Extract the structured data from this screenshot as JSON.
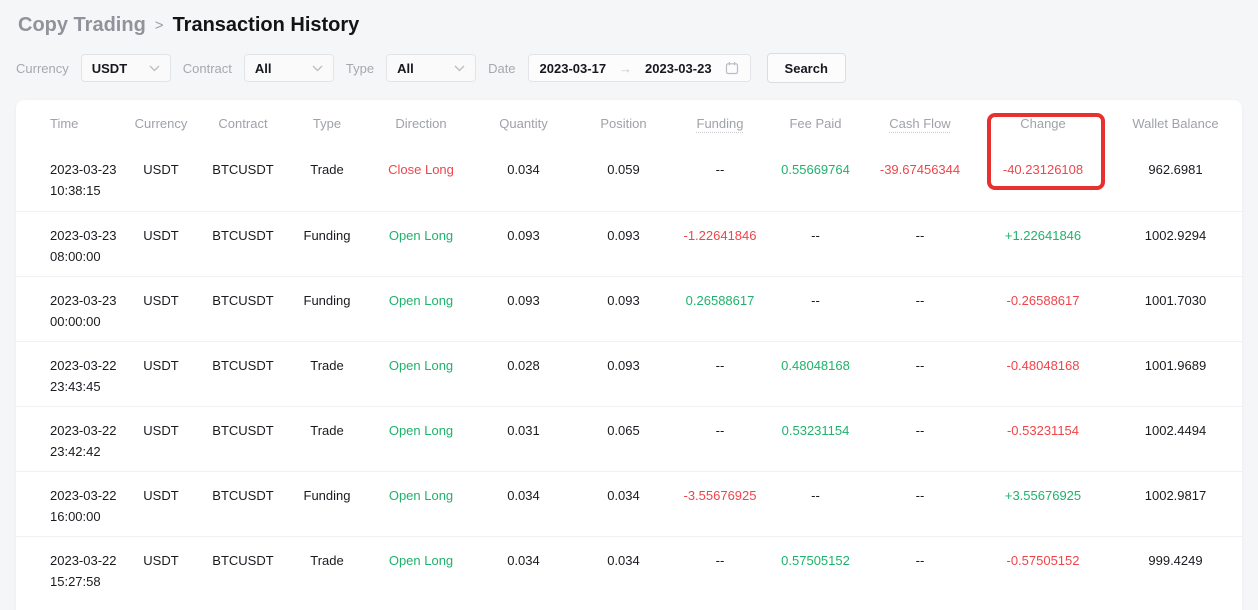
{
  "breadcrumb": {
    "parent": "Copy Trading",
    "separator": ">",
    "current": "Transaction History"
  },
  "filters": {
    "currency_label": "Currency",
    "currency_value": "USDT",
    "contract_label": "Contract",
    "contract_value": "All",
    "type_label": "Type",
    "type_value": "All",
    "date_label": "Date",
    "date_start": "2023-03-17",
    "date_arrow": "→",
    "date_end": "2023-03-23",
    "search_label": "Search"
  },
  "colors": {
    "green": "#20b26c",
    "red": "#ef454a",
    "annotation_box": "#e8312f"
  },
  "annotation": {
    "description": "red box drawn around Change column header and first-row value"
  },
  "table": {
    "columns": [
      {
        "label": "Time"
      },
      {
        "label": "Currency"
      },
      {
        "label": "Contract"
      },
      {
        "label": "Type"
      },
      {
        "label": "Direction"
      },
      {
        "label": "Quantity"
      },
      {
        "label": "Position"
      },
      {
        "label": "Funding",
        "tip": true
      },
      {
        "label": "Fee Paid"
      },
      {
        "label": "Cash Flow",
        "tip": true
      },
      {
        "label": "Change"
      },
      {
        "label": "Wallet Balance"
      }
    ],
    "rows": [
      {
        "cells": [
          {
            "lines": [
              "2023-03-23",
              "10:38:15"
            ]
          },
          {
            "v": "USDT"
          },
          {
            "v": "BTCUSDT"
          },
          {
            "v": "Trade"
          },
          {
            "v": "Close Long",
            "c": "red"
          },
          {
            "v": "0.034"
          },
          {
            "v": "0.059"
          },
          {
            "v": "--"
          },
          {
            "v": "0.55669764",
            "c": "green"
          },
          {
            "v": "-39.67456344",
            "c": "red"
          },
          {
            "v": "-40.23126108",
            "c": "red"
          },
          {
            "v": "962.6981"
          }
        ]
      },
      {
        "cells": [
          {
            "lines": [
              "2023-03-23",
              "08:00:00"
            ]
          },
          {
            "v": "USDT"
          },
          {
            "v": "BTCUSDT"
          },
          {
            "v": "Funding"
          },
          {
            "v": "Open Long",
            "c": "green"
          },
          {
            "v": "0.093"
          },
          {
            "v": "0.093"
          },
          {
            "v": "-1.22641846",
            "c": "red"
          },
          {
            "v": "--"
          },
          {
            "v": "--"
          },
          {
            "v": "+1.22641846",
            "c": "green"
          },
          {
            "v": "1002.9294"
          }
        ]
      },
      {
        "cells": [
          {
            "lines": [
              "2023-03-23",
              "00:00:00"
            ]
          },
          {
            "v": "USDT"
          },
          {
            "v": "BTCUSDT"
          },
          {
            "v": "Funding"
          },
          {
            "v": "Open Long",
            "c": "green"
          },
          {
            "v": "0.093"
          },
          {
            "v": "0.093"
          },
          {
            "v": "0.26588617",
            "c": "green"
          },
          {
            "v": "--"
          },
          {
            "v": "--"
          },
          {
            "v": "-0.26588617",
            "c": "red"
          },
          {
            "v": "1001.7030"
          }
        ]
      },
      {
        "cells": [
          {
            "lines": [
              "2023-03-22",
              "23:43:45"
            ]
          },
          {
            "v": "USDT"
          },
          {
            "v": "BTCUSDT"
          },
          {
            "v": "Trade"
          },
          {
            "v": "Open Long",
            "c": "green"
          },
          {
            "v": "0.028"
          },
          {
            "v": "0.093"
          },
          {
            "v": "--"
          },
          {
            "v": "0.48048168",
            "c": "green"
          },
          {
            "v": "--"
          },
          {
            "v": "-0.48048168",
            "c": "red"
          },
          {
            "v": "1001.9689"
          }
        ]
      },
      {
        "cells": [
          {
            "lines": [
              "2023-03-22",
              "23:42:42"
            ]
          },
          {
            "v": "USDT"
          },
          {
            "v": "BTCUSDT"
          },
          {
            "v": "Trade"
          },
          {
            "v": "Open Long",
            "c": "green"
          },
          {
            "v": "0.031"
          },
          {
            "v": "0.065"
          },
          {
            "v": "--"
          },
          {
            "v": "0.53231154",
            "c": "green"
          },
          {
            "v": "--"
          },
          {
            "v": "-0.53231154",
            "c": "red"
          },
          {
            "v": "1002.4494"
          }
        ]
      },
      {
        "cells": [
          {
            "lines": [
              "2023-03-22",
              "16:00:00"
            ]
          },
          {
            "v": "USDT"
          },
          {
            "v": "BTCUSDT"
          },
          {
            "v": "Funding"
          },
          {
            "v": "Open Long",
            "c": "green"
          },
          {
            "v": "0.034"
          },
          {
            "v": "0.034"
          },
          {
            "v": "-3.55676925",
            "c": "red"
          },
          {
            "v": "--"
          },
          {
            "v": "--"
          },
          {
            "v": "+3.55676925",
            "c": "green"
          },
          {
            "v": "1002.9817"
          }
        ]
      },
      {
        "cells": [
          {
            "lines": [
              "2023-03-22",
              "15:27:58"
            ]
          },
          {
            "v": "USDT"
          },
          {
            "v": "BTCUSDT"
          },
          {
            "v": "Trade"
          },
          {
            "v": "Open Long",
            "c": "green"
          },
          {
            "v": "0.034"
          },
          {
            "v": "0.034"
          },
          {
            "v": "--"
          },
          {
            "v": "0.57505152",
            "c": "green"
          },
          {
            "v": "--"
          },
          {
            "v": "-0.57505152",
            "c": "red"
          },
          {
            "v": "999.4249"
          }
        ]
      }
    ]
  }
}
